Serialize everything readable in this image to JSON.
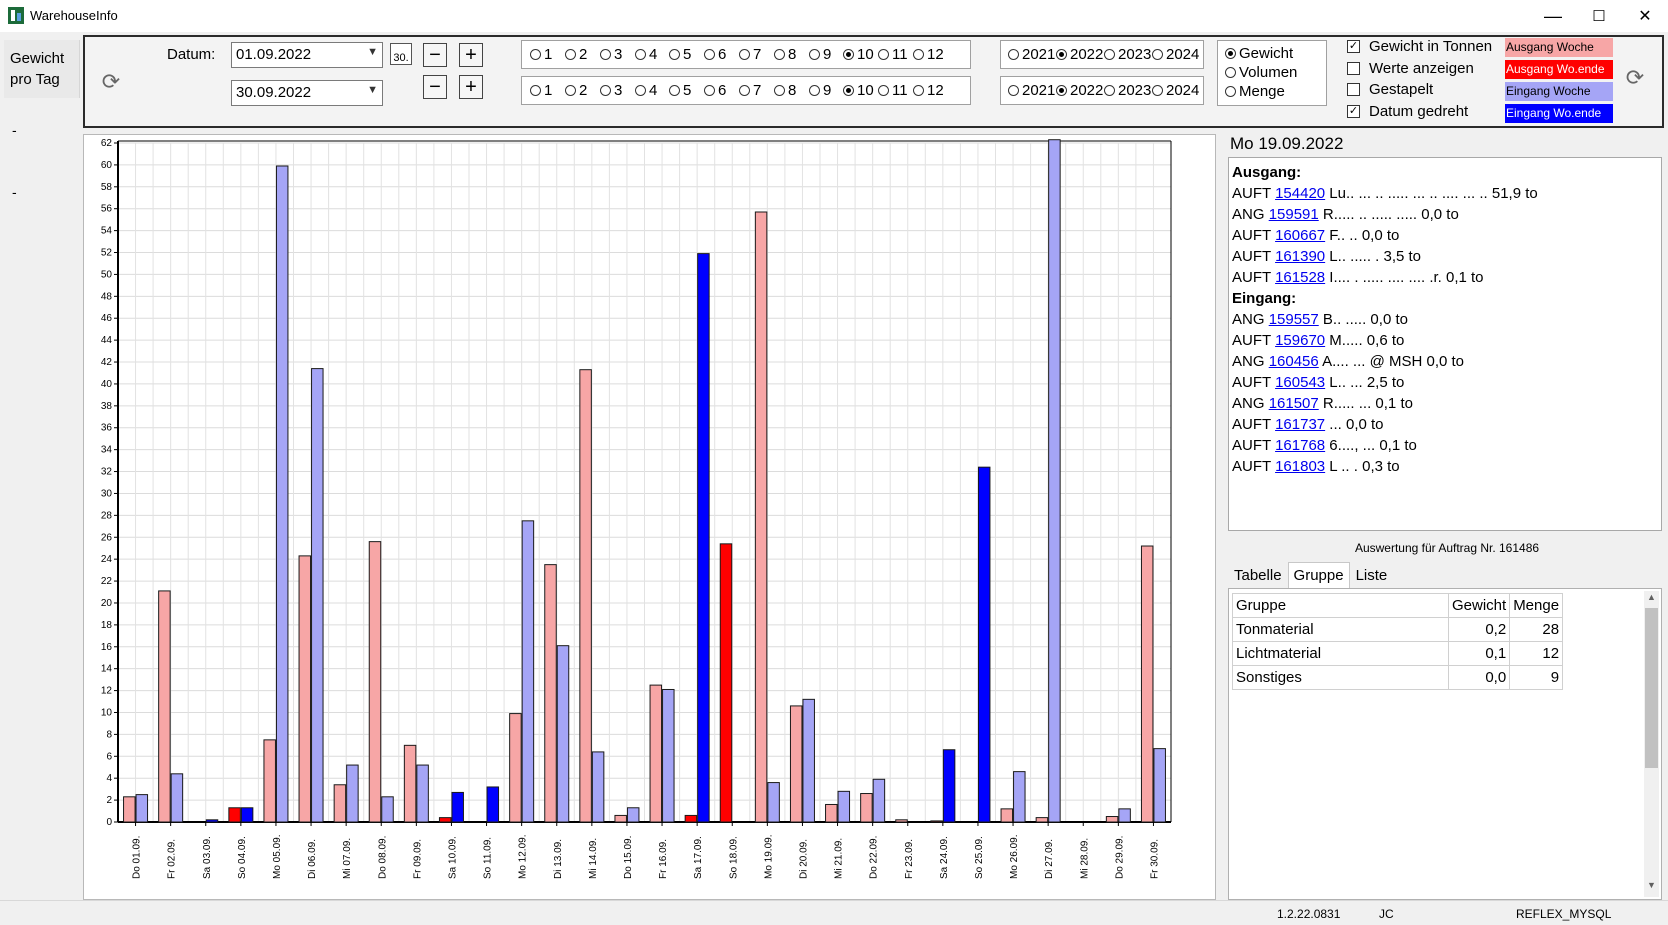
{
  "window": {
    "title": "WarehouseInfo",
    "min": "—",
    "max": "☐",
    "close": "✕"
  },
  "left": {
    "tab_line1": "Gewicht",
    "tab_line2": "pro Tag",
    "dash1": "-",
    "dash2": "-"
  },
  "toolbar": {
    "datum_label": "Datum:",
    "date_from": "01.09.2022",
    "date_to": "30.09.2022",
    "cal_label": "30.",
    "months": [
      "1",
      "2",
      "3",
      "4",
      "5",
      "6",
      "7",
      "8",
      "9",
      "10",
      "11",
      "12"
    ],
    "month_selected_row1": "10",
    "month_selected_row2": "10",
    "years": [
      "2021",
      "2022",
      "2023",
      "2024"
    ],
    "year_selected_row1": "2022",
    "year_selected_row2": "2022",
    "measures": [
      "Gewicht",
      "Volumen",
      "Menge"
    ],
    "measure_selected": "Gewicht",
    "options": [
      {
        "label": "Gewicht in Tonnen",
        "checked": true
      },
      {
        "label": "Werte anzeigen",
        "checked": false
      },
      {
        "label": "Gestapelt",
        "checked": false
      },
      {
        "label": "Datum gedreht",
        "checked": true
      }
    ],
    "legend": [
      {
        "label": "Ausgang Woche",
        "color": "#f7a6a6",
        "text": "#000000"
      },
      {
        "label": "Ausgang Wo.ende",
        "color": "#ff0000",
        "text": "#ffffff"
      },
      {
        "label": "Eingang Woche",
        "color": "#a5a5f6",
        "text": "#000000"
      },
      {
        "label": "Eingang Wo.ende",
        "color": "#0000ff",
        "text": "#ffffff"
      }
    ]
  },
  "chart_data": {
    "type": "bar",
    "ylim": [
      0,
      62
    ],
    "yticks": [
      0,
      2,
      4,
      6,
      8,
      10,
      12,
      14,
      16,
      18,
      20,
      22,
      24,
      26,
      28,
      30,
      32,
      34,
      36,
      38,
      40,
      42,
      44,
      46,
      48,
      50,
      52,
      54,
      56,
      58,
      60,
      62
    ],
    "categories": [
      "Do 01.09.",
      "Fr 02.09.",
      "Sa 03.09.",
      "So 04.09.",
      "Mo 05.09.",
      "Di 06.09.",
      "Mi 07.09.",
      "Do 08.09.",
      "Fr 09.09.",
      "Sa 10.09.",
      "So 11.09.",
      "Mo 12.09.",
      "Di 13.09.",
      "Mi 14.09.",
      "Do 15.09.",
      "Fr 16.09.",
      "Sa 17.09.",
      "So 18.09.",
      "Mo 19.09.",
      "Di 20.09.",
      "Mi 21.09.",
      "Do 22.09.",
      "Fr 23.09.",
      "Sa 24.09.",
      "So 25.09.",
      "Mo 26.09.",
      "Di 27.09.",
      "Mi 28.09.",
      "Do 29.09.",
      "Fr 30.09."
    ],
    "weekend": [
      false,
      false,
      true,
      true,
      false,
      false,
      false,
      false,
      false,
      true,
      true,
      false,
      false,
      false,
      false,
      false,
      true,
      true,
      false,
      false,
      false,
      false,
      false,
      true,
      true,
      false,
      false,
      false,
      false,
      false
    ],
    "series": [
      {
        "name": "Ausgang",
        "values": [
          2.3,
          21.1,
          0,
          1.3,
          7.5,
          24.3,
          3.4,
          25.6,
          7.0,
          0.4,
          0,
          9.9,
          23.5,
          41.3,
          0.6,
          12.5,
          0.6,
          25.4,
          55.7,
          10.6,
          1.6,
          2.6,
          0.2,
          0.1,
          0,
          1.2,
          0.4,
          0,
          0.5,
          25.2
        ]
      },
      {
        "name": "Eingang",
        "values": [
          2.5,
          4.4,
          0.2,
          1.3,
          59.9,
          41.4,
          5.2,
          2.3,
          5.2,
          2.7,
          3.2,
          27.5,
          16.1,
          6.4,
          1.3,
          12.1,
          51.9,
          0,
          3.6,
          11.2,
          2.8,
          3.9,
          0,
          6.6,
          32.4,
          4.6,
          62.3,
          0,
          1.2,
          6.7
        ]
      }
    ],
    "colors": {
      "out_week": "#f7a6a6",
      "out_weekend": "#ff0000",
      "in_week": "#a5a5f6",
      "in_weekend": "#0000ff"
    }
  },
  "detail": {
    "date_heading": "Mo 19.09.2022",
    "ausgang_label": "Ausgang:",
    "eingang_label": "Eingang:",
    "ausgang": [
      {
        "type": "AUFT",
        "nr": "154420",
        "text": " Lu.. ... .. ..... ... .. .... ... .. 51,9 to"
      },
      {
        "type": "ANG",
        "nr": "159591",
        "text": " R..... .. ..... ..... 0,0 to"
      },
      {
        "type": "AUFT",
        "nr": "160667",
        "text": " F.. .. 0,0 to"
      },
      {
        "type": "AUFT",
        "nr": "161390",
        "text": " L.. ..... . 3,5 to"
      },
      {
        "type": "AUFT",
        "nr": "161528",
        "text": " I.... . ..... .... .... .r. 0,1 to"
      }
    ],
    "eingang": [
      {
        "type": "ANG",
        "nr": "159557",
        "text": " B.. ..... 0,0 to"
      },
      {
        "type": "AUFT",
        "nr": "159670",
        "text": " M..... 0,6 to"
      },
      {
        "type": "ANG",
        "nr": "160456",
        "text": " A.... ... @ MSH 0,0 to"
      },
      {
        "type": "AUFT",
        "nr": "160543",
        "text": " L.. ... 2,5 to"
      },
      {
        "type": "ANG",
        "nr": "161507",
        "text": " R..... ... 0,1 to"
      },
      {
        "type": "AUFT",
        "nr": "161737",
        "text": " ... 0,0 to"
      },
      {
        "type": "AUFT",
        "nr": "161768",
        "text": " 6...., ... 0,1 to"
      },
      {
        "type": "AUFT",
        "nr": "161803",
        "text": " L .. . 0,3 to"
      }
    ]
  },
  "auswertung": "Auswertung für Auftrag Nr. 161486",
  "tabs": [
    "Tabelle",
    "Gruppe",
    "Liste"
  ],
  "active_tab": "Gruppe",
  "table": {
    "headers": [
      "Gruppe",
      "Gewicht",
      "Menge"
    ],
    "rows": [
      [
        "Tonmaterial",
        "0,2",
        "28"
      ],
      [
        "Lichtmaterial",
        "0,1",
        "12"
      ],
      [
        "Sonstiges",
        "0,0",
        "9"
      ]
    ]
  },
  "status": {
    "version": "1.2.22.0831",
    "user": "JC",
    "db": "REFLEX_MYSQL"
  }
}
